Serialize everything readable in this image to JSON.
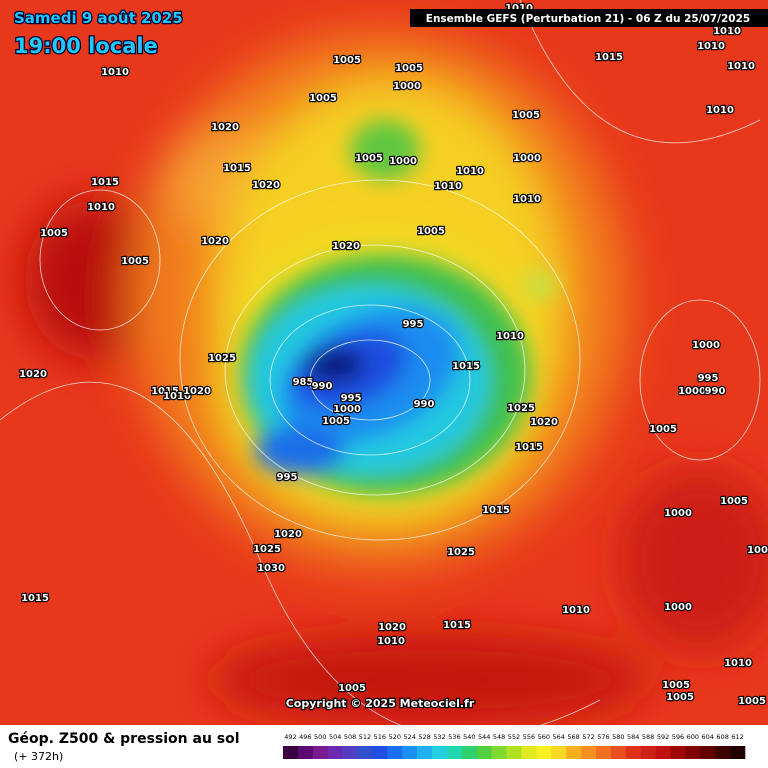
{
  "header": {
    "date": "Samedi 9 août 2025",
    "time": "19:00 locale",
    "run": "Ensemble GEFS  (Perturbation 21)  -  06 Z du 25/07/2025"
  },
  "copyright": "Copyright © 2025 Meteociel.fr",
  "footer": {
    "title": "Géop. Z500 & pression au sol",
    "lead": "(+ 372h)"
  },
  "isobar_labels": [
    1005,
    1005,
    1000,
    1005,
    1010,
    1010,
    1010,
    1010,
    1010,
    1015,
    1010,
    1005,
    1020,
    1005,
    1000,
    1000,
    1015,
    1020,
    1010,
    1010,
    1010,
    1015,
    1010,
    1005,
    1005,
    1020,
    1005,
    1020,
    995,
    1010,
    1000,
    1025,
    985,
    990,
    1015,
    995,
    1000,
    990,
    1020,
    1015,
    1010,
    1020,
    995,
    1000,
    990,
    1025,
    1005,
    1020,
    1015,
    1005,
    995,
    1005,
    1000,
    1015,
    1020,
    1025,
    1025,
    1005,
    1030,
    1015,
    1010,
    1000,
    1020,
    1015,
    1010,
    1010,
    1005,
    1005,
    1005,
    1005
  ],
  "scale": {
    "ticks": [
      492,
      496,
      500,
      504,
      508,
      512,
      516,
      520,
      524,
      528,
      532,
      536,
      540,
      544,
      548,
      552,
      556,
      560,
      564,
      568,
      572,
      576,
      580,
      584,
      588,
      592,
      596,
      600,
      604,
      608,
      612
    ],
    "colors": [
      "#3a0040",
      "#5a0a70",
      "#7a1a90",
      "#6a2ab0",
      "#5040c0",
      "#3050d0",
      "#1f4fe0",
      "#1a70f0",
      "#1a90f5",
      "#20b0f0",
      "#20d0e0",
      "#20d8b0",
      "#30d070",
      "#50d040",
      "#80d830",
      "#b0e020",
      "#e0e820",
      "#f8f020",
      "#f8d820",
      "#f8b020",
      "#f89020",
      "#f07020",
      "#e85020",
      "#e03018",
      "#d02018",
      "#c01010",
      "#a00808",
      "#800000",
      "#600000",
      "#400000",
      "#200000"
    ]
  }
}
